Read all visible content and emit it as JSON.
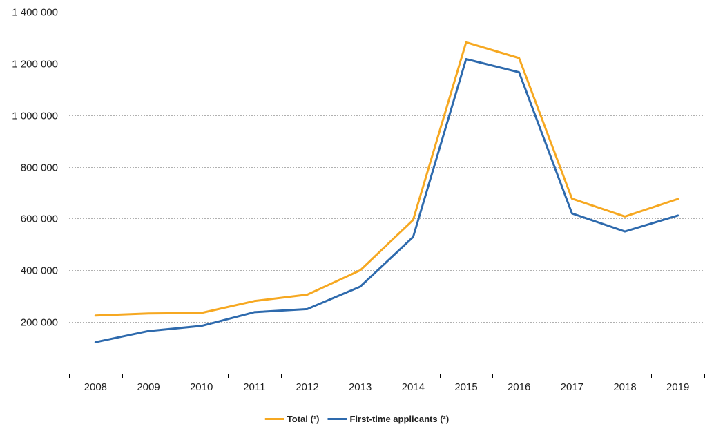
{
  "chart_data": {
    "type": "line",
    "title": "",
    "xlabel": "",
    "ylabel": "",
    "categories": [
      "2008",
      "2009",
      "2010",
      "2011",
      "2012",
      "2013",
      "2014",
      "2015",
      "2016",
      "2017",
      "2018",
      "2019"
    ],
    "ylim": [
      0,
      1400000
    ],
    "yticks": [
      200000,
      400000,
      600000,
      800000,
      1000000,
      1200000,
      1400000
    ],
    "ytick_labels": [
      "200 000",
      "400 000",
      "600 000",
      "800 000",
      "1 000 000",
      "1 200 000",
      "1 400 000"
    ],
    "grid": "horizontal dashed",
    "legend_position": "bottom",
    "series": [
      {
        "name": "Total (¹)",
        "color": "#f6a821",
        "values": [
          225000,
          233000,
          235000,
          281000,
          306000,
          400000,
          595000,
          1282000,
          1221000,
          677000,
          608000,
          676000
        ]
      },
      {
        "name": "First-time applicants (²)",
        "color": "#2e6aad",
        "values": [
          122000,
          165000,
          185000,
          238000,
          250000,
          337000,
          529000,
          1217000,
          1166000,
          620000,
          550000,
          612000
        ]
      }
    ]
  }
}
